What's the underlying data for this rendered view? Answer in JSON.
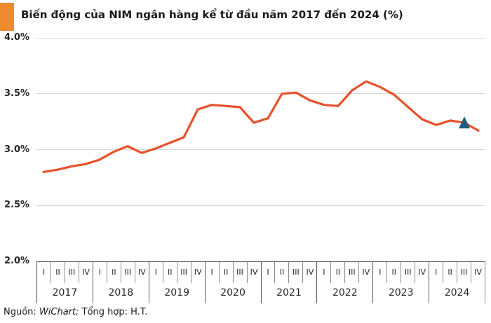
{
  "title": {
    "text": "Biến động của NIM ngân hàng kể từ đầu năm 2017 đến 2024 (%)"
  },
  "colors": {
    "title_marker": "#EF8A2F",
    "line": "#E8512B",
    "triangle": "#1E5F7E",
    "gridline": "#D9D9D9",
    "axis_dark": "#595959",
    "axis_light": "#8C8C8C"
  },
  "chart_data": {
    "type": "line",
    "title": "Biến động của NIM ngân hàng kể từ đầu năm 2017 đến 2024 (%)",
    "unit": "%",
    "years": [
      "2017",
      "2018",
      "2019",
      "2020",
      "2021",
      "2022",
      "2023",
      "2024"
    ],
    "quarter_labels": [
      "I",
      "II",
      "III",
      "IV"
    ],
    "series": [
      {
        "name": "NIM ngân hàng",
        "values": [
          2.8,
          2.82,
          2.85,
          2.87,
          2.91,
          2.98,
          3.03,
          2.97,
          3.01,
          3.06,
          3.11,
          3.36,
          3.4,
          3.39,
          3.38,
          3.24,
          3.28,
          3.5,
          3.51,
          3.44,
          3.4,
          3.39,
          3.53,
          3.61,
          3.56,
          3.49,
          3.38,
          3.27,
          3.22,
          3.26,
          3.24,
          3.17
        ]
      }
    ],
    "ylim": [
      2.0,
      4.0
    ],
    "yticks": [
      {
        "value": 4.0,
        "label": "4.0%"
      },
      {
        "value": 3.5,
        "label": "3.5%"
      },
      {
        "value": 3.0,
        "label": "3.0%"
      },
      {
        "value": 2.5,
        "label": "2.5%"
      },
      {
        "value": 2.0,
        "label": "2.0%"
      }
    ],
    "grid": "horizontal-only",
    "legend": "none",
    "marker": {
      "type": "triangle-up",
      "category": "2024 III",
      "index": 30,
      "value": 3.24
    }
  },
  "source": {
    "label": "Nguồn:",
    "name": "WiChart;",
    "rest": "Tổng hợp: H.T."
  }
}
